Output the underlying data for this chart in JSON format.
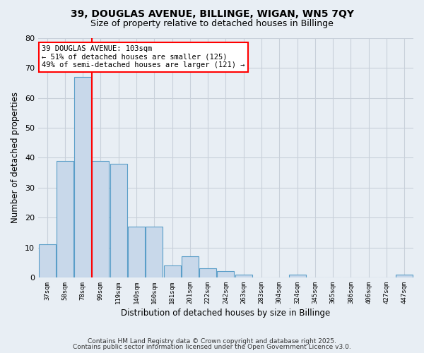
{
  "title1": "39, DOUGLAS AVENUE, BILLINGE, WIGAN, WN5 7QY",
  "title2": "Size of property relative to detached houses in Billinge",
  "xlabel": "Distribution of detached houses by size in Billinge",
  "ylabel": "Number of detached properties",
  "bar_labels": [
    "37sqm",
    "58sqm",
    "78sqm",
    "99sqm",
    "119sqm",
    "140sqm",
    "160sqm",
    "181sqm",
    "201sqm",
    "222sqm",
    "242sqm",
    "263sqm",
    "283sqm",
    "304sqm",
    "324sqm",
    "345sqm",
    "365sqm",
    "386sqm",
    "406sqm",
    "427sqm",
    "447sqm"
  ],
  "bar_values": [
    11,
    39,
    67,
    39,
    38,
    17,
    17,
    4,
    7,
    3,
    2,
    1,
    0,
    0,
    1,
    0,
    0,
    0,
    0,
    0,
    1
  ],
  "bar_color": "#c8d8ea",
  "bar_edge_color": "#5a9ec8",
  "red_line_index": 2.5,
  "annotation_text": "39 DOUGLAS AVENUE: 103sqm\n← 51% of detached houses are smaller (125)\n49% of semi-detached houses are larger (121) →",
  "annotation_box_color": "white",
  "annotation_box_edge_color": "red",
  "ylim": [
    0,
    80
  ],
  "yticks": [
    0,
    10,
    20,
    30,
    40,
    50,
    60,
    70,
    80
  ],
  "footer1": "Contains HM Land Registry data © Crown copyright and database right 2025.",
  "footer2": "Contains public sector information licensed under the Open Government Licence v3.0.",
  "background_color": "#e8eef4",
  "grid_color": "#d0d8e0"
}
